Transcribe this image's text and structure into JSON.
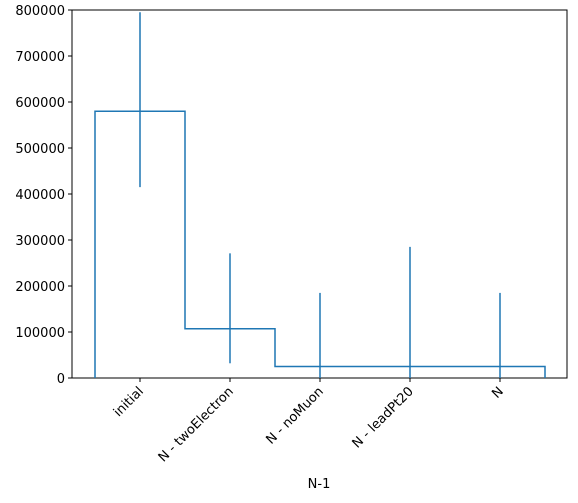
{
  "chart_data": {
    "type": "step-errorbar",
    "x_label": "N-1",
    "categories": [
      "initial",
      "N - twoElectron",
      "N - noMuon",
      "N - leadPt20",
      "N"
    ],
    "values": [
      580000,
      107000,
      25000,
      25000,
      25000
    ],
    "error_low": [
      165000,
      75000,
      25000,
      25000,
      25000
    ],
    "error_high": [
      215000,
      164000,
      160000,
      260000,
      160000
    ],
    "color": "#1f77b4",
    "ylim": [
      0,
      800000
    ],
    "yticks": [
      0,
      100000,
      200000,
      300000,
      400000,
      500000,
      600000,
      700000,
      800000
    ]
  }
}
